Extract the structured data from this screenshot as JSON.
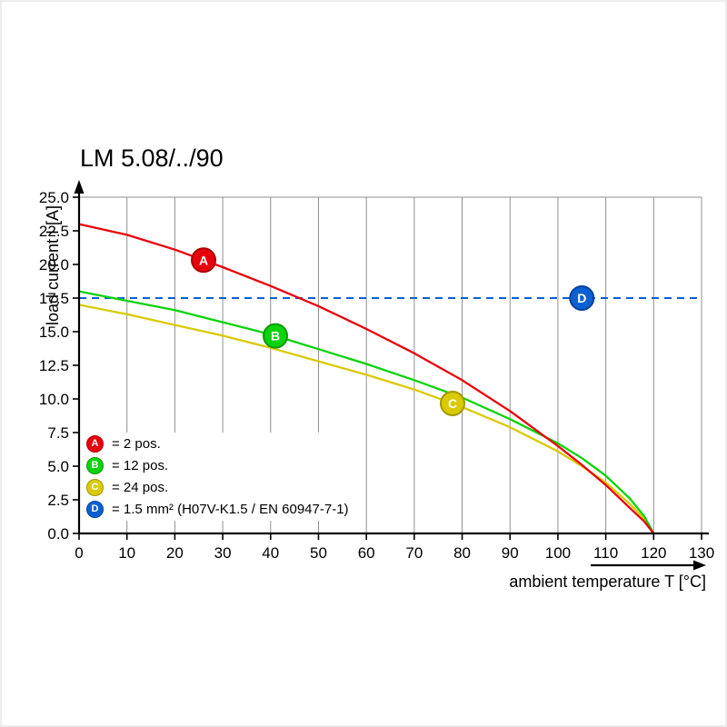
{
  "chart_data": {
    "type": "line",
    "title": "LM 5.08/../90",
    "xlabel": "ambient temperature T [°C]",
    "ylabel": "load current I [A]",
    "xlim": [
      0,
      130
    ],
    "ylim": [
      0,
      25
    ],
    "grid": "vertical",
    "legend_position": "bottom-left-inside",
    "x_ticks": [
      0,
      10,
      20,
      30,
      40,
      50,
      60,
      70,
      80,
      90,
      100,
      110,
      120,
      130
    ],
    "x_tick_labels": [
      "0",
      "10",
      "20",
      "30",
      "40",
      "50",
      "60",
      "70",
      "80",
      "90",
      "100",
      "110",
      "120",
      "130"
    ],
    "y_ticks": [
      0,
      2.5,
      5,
      7.5,
      10,
      12.5,
      15,
      17.5,
      20,
      22.5,
      25
    ],
    "y_tick_labels": [
      "0.0",
      "2.5",
      "5.0",
      "7.5",
      "10.0",
      "12.5",
      "15.0",
      "17.5",
      "20.0",
      "22.5",
      "25.0"
    ],
    "series": [
      {
        "name": "A",
        "legend": "= 2 pos.",
        "color": "#e8000b",
        "edge": "#ad0008",
        "type": "curve",
        "points": [
          [
            0,
            23.0
          ],
          [
            10,
            22.2
          ],
          [
            20,
            21.1
          ],
          [
            30,
            19.8
          ],
          [
            40,
            18.4
          ],
          [
            50,
            16.9
          ],
          [
            60,
            15.2
          ],
          [
            70,
            13.4
          ],
          [
            80,
            11.4
          ],
          [
            90,
            9.1
          ],
          [
            100,
            6.5
          ],
          [
            105,
            5.1
          ],
          [
            110,
            3.6
          ],
          [
            115,
            1.9
          ],
          [
            118,
            0.9
          ],
          [
            120,
            0
          ]
        ]
      },
      {
        "name": "B",
        "legend": "= 12 pos.",
        "color": "#0bd30b",
        "edge": "#089a08",
        "type": "curve",
        "points": [
          [
            0,
            18.0
          ],
          [
            10,
            17.3
          ],
          [
            20,
            16.6
          ],
          [
            30,
            15.7
          ],
          [
            40,
            14.8
          ],
          [
            50,
            13.7
          ],
          [
            60,
            12.6
          ],
          [
            70,
            11.4
          ],
          [
            80,
            10.1
          ],
          [
            90,
            8.5
          ],
          [
            100,
            6.7
          ],
          [
            105,
            5.6
          ],
          [
            110,
            4.3
          ],
          [
            115,
            2.6
          ],
          [
            118,
            1.3
          ],
          [
            120,
            0
          ]
        ]
      },
      {
        "name": "C",
        "legend": "= 24 pos.",
        "color": "#d9ca02",
        "edge": "#a39700",
        "type": "curve",
        "points": [
          [
            0,
            17.0
          ],
          [
            10,
            16.3
          ],
          [
            20,
            15.5
          ],
          [
            30,
            14.7
          ],
          [
            40,
            13.8
          ],
          [
            50,
            12.8
          ],
          [
            60,
            11.8
          ],
          [
            70,
            10.7
          ],
          [
            80,
            9.4
          ],
          [
            90,
            7.9
          ],
          [
            100,
            6.1
          ],
          [
            105,
            5.0
          ],
          [
            110,
            3.8
          ],
          [
            115,
            2.2
          ],
          [
            118,
            1.1
          ],
          [
            120,
            0
          ]
        ]
      },
      {
        "name": "D",
        "legend": "= 1.5 mm² (H07V-K1.5 / EN 60947-7-1)",
        "color": "#0a60d1",
        "edge": "#06419e",
        "type": "hline",
        "value": 17.5,
        "dashed": true
      }
    ],
    "markers": [
      {
        "series": "A",
        "t": 26
      },
      {
        "series": "B",
        "t": 41
      },
      {
        "series": "C",
        "t": 78
      },
      {
        "series": "D",
        "t": 105
      }
    ]
  }
}
